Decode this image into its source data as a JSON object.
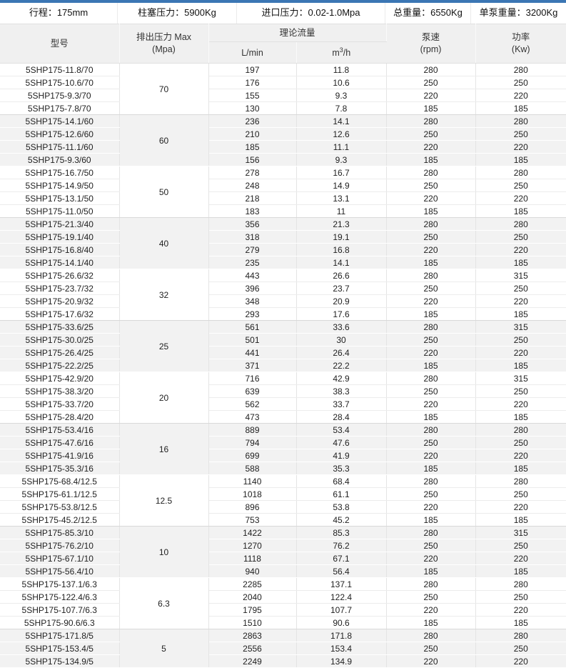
{
  "info_bar": {
    "items": [
      {
        "label": "行程：",
        "value": "175mm"
      },
      {
        "label": "柱塞压力：",
        "value": "5900Kg"
      },
      {
        "label": "进口压力：",
        "value": "0.02-1.0Mpa"
      },
      {
        "label": "总重量：",
        "value": "6550Kg"
      },
      {
        "label": "单泵重量：",
        "value": "3200Kg"
      }
    ]
  },
  "table": {
    "headers": {
      "model": "型号",
      "pressure_l1": "排出压力 Max",
      "pressure_l2": "(Mpa)",
      "flow": "理论流量",
      "flow_unit1": "L/min",
      "flow_unit2_base": "m",
      "flow_unit2_sup": "3",
      "flow_unit2_rest": "/h",
      "speed_l1": "泵速",
      "speed_l2": "(rpm)",
      "power_l1": "功率",
      "power_l2": "(Kw)"
    },
    "groups": [
      {
        "pressure": "70",
        "rows": [
          {
            "model": "5SHP175-11.8/70",
            "lmin": "197",
            "m3h": "11.8",
            "rpm": "280",
            "kw": "280"
          },
          {
            "model": "5SHP175-10.6/70",
            "lmin": "176",
            "m3h": "10.6",
            "rpm": "250",
            "kw": "250"
          },
          {
            "model": "5SHP175-9.3/70",
            "lmin": "155",
            "m3h": "9.3",
            "rpm": "220",
            "kw": "220"
          },
          {
            "model": "5SHP175-7.8/70",
            "lmin": "130",
            "m3h": "7.8",
            "rpm": "185",
            "kw": "185"
          }
        ]
      },
      {
        "pressure": "60",
        "rows": [
          {
            "model": "5SHP175-14.1/60",
            "lmin": "236",
            "m3h": "14.1",
            "rpm": "280",
            "kw": "280"
          },
          {
            "model": "5SHP175-12.6/60",
            "lmin": "210",
            "m3h": "12.6",
            "rpm": "250",
            "kw": "250"
          },
          {
            "model": "5SHP175-11.1/60",
            "lmin": "185",
            "m3h": "11.1",
            "rpm": "220",
            "kw": "220"
          },
          {
            "model": "5SHP175-9.3/60",
            "lmin": "156",
            "m3h": "9.3",
            "rpm": "185",
            "kw": "185"
          }
        ]
      },
      {
        "pressure": "50",
        "rows": [
          {
            "model": "5SHP175-16.7/50",
            "lmin": "278",
            "m3h": "16.7",
            "rpm": "280",
            "kw": "280"
          },
          {
            "model": "5SHP175-14.9/50",
            "lmin": "248",
            "m3h": "14.9",
            "rpm": "250",
            "kw": "250"
          },
          {
            "model": "5SHP175-13.1/50",
            "lmin": "218",
            "m3h": "13.1",
            "rpm": "220",
            "kw": "220"
          },
          {
            "model": "5SHP175-11.0/50",
            "lmin": "183",
            "m3h": "11",
            "rpm": "185",
            "kw": "185"
          }
        ]
      },
      {
        "pressure": "40",
        "rows": [
          {
            "model": "5SHP175-21.3/40",
            "lmin": "356",
            "m3h": "21.3",
            "rpm": "280",
            "kw": "280"
          },
          {
            "model": "5SHP175-19.1/40",
            "lmin": "318",
            "m3h": "19.1",
            "rpm": "250",
            "kw": "250"
          },
          {
            "model": "5SHP175-16.8/40",
            "lmin": "279",
            "m3h": "16.8",
            "rpm": "220",
            "kw": "220"
          },
          {
            "model": "5SHP175-14.1/40",
            "lmin": "235",
            "m3h": "14.1",
            "rpm": "185",
            "kw": "185"
          }
        ]
      },
      {
        "pressure": "32",
        "rows": [
          {
            "model": "5SHP175-26.6/32",
            "lmin": "443",
            "m3h": "26.6",
            "rpm": "280",
            "kw": "315"
          },
          {
            "model": "5SHP175-23.7/32",
            "lmin": "396",
            "m3h": "23.7",
            "rpm": "250",
            "kw": "250"
          },
          {
            "model": "5SHP175-20.9/32",
            "lmin": "348",
            "m3h": "20.9",
            "rpm": "220",
            "kw": "220"
          },
          {
            "model": "5SHP175-17.6/32",
            "lmin": "293",
            "m3h": "17.6",
            "rpm": "185",
            "kw": "185"
          }
        ]
      },
      {
        "pressure": "25",
        "rows": [
          {
            "model": "5SHP175-33.6/25",
            "lmin": "561",
            "m3h": "33.6",
            "rpm": "280",
            "kw": "315"
          },
          {
            "model": "5SHP175-30.0/25",
            "lmin": "501",
            "m3h": "30",
            "rpm": "250",
            "kw": "250"
          },
          {
            "model": "5SHP175-26.4/25",
            "lmin": "441",
            "m3h": "26.4",
            "rpm": "220",
            "kw": "220"
          },
          {
            "model": "5SHP175-22.2/25",
            "lmin": "371",
            "m3h": "22.2",
            "rpm": "185",
            "kw": "185"
          }
        ]
      },
      {
        "pressure": "20",
        "rows": [
          {
            "model": "5SHP175-42.9/20",
            "lmin": "716",
            "m3h": "42.9",
            "rpm": "280",
            "kw": "315"
          },
          {
            "model": "5SHP175-38.3/20",
            "lmin": "639",
            "m3h": "38.3",
            "rpm": "250",
            "kw": "250"
          },
          {
            "model": "5SHP175-33.7/20",
            "lmin": "562",
            "m3h": "33.7",
            "rpm": "220",
            "kw": "220"
          },
          {
            "model": "5SHP175-28.4/20",
            "lmin": "473",
            "m3h": "28.4",
            "rpm": "185",
            "kw": "185"
          }
        ]
      },
      {
        "pressure": "16",
        "rows": [
          {
            "model": "5SHP175-53.4/16",
            "lmin": "889",
            "m3h": "53.4",
            "rpm": "280",
            "kw": "280"
          },
          {
            "model": "5SHP175-47.6/16",
            "lmin": "794",
            "m3h": "47.6",
            "rpm": "250",
            "kw": "250"
          },
          {
            "model": "5SHP175-41.9/16",
            "lmin": "699",
            "m3h": "41.9",
            "rpm": "220",
            "kw": "220"
          },
          {
            "model": "5SHP175-35.3/16",
            "lmin": "588",
            "m3h": "35.3",
            "rpm": "185",
            "kw": "185"
          }
        ]
      },
      {
        "pressure": "12.5",
        "rows": [
          {
            "model": "5SHP175-68.4/12.5",
            "lmin": "1140",
            "m3h": "68.4",
            "rpm": "280",
            "kw": "280"
          },
          {
            "model": "5SHP175-61.1/12.5",
            "lmin": "1018",
            "m3h": "61.1",
            "rpm": "250",
            "kw": "250"
          },
          {
            "model": "5SHP175-53.8/12.5",
            "lmin": "896",
            "m3h": "53.8",
            "rpm": "220",
            "kw": "220"
          },
          {
            "model": "5SHP175-45.2/12.5",
            "lmin": "753",
            "m3h": "45.2",
            "rpm": "185",
            "kw": "185"
          }
        ]
      },
      {
        "pressure": "10",
        "rows": [
          {
            "model": "5SHP175-85.3/10",
            "lmin": "1422",
            "m3h": "85.3",
            "rpm": "280",
            "kw": "315"
          },
          {
            "model": "5SHP175-76.2/10",
            "lmin": "1270",
            "m3h": "76.2",
            "rpm": "250",
            "kw": "250"
          },
          {
            "model": "5SHP175-67.1/10",
            "lmin": "1118",
            "m3h": "67.1",
            "rpm": "220",
            "kw": "220"
          },
          {
            "model": "5SHP175-56.4/10",
            "lmin": "940",
            "m3h": "56.4",
            "rpm": "185",
            "kw": "185"
          }
        ]
      },
      {
        "pressure": "6.3",
        "rows": [
          {
            "model": "5SHP175-137.1/6.3",
            "lmin": "2285",
            "m3h": "137.1",
            "rpm": "280",
            "kw": "280"
          },
          {
            "model": "5SHP175-122.4/6.3",
            "lmin": "2040",
            "m3h": "122.4",
            "rpm": "250",
            "kw": "250"
          },
          {
            "model": "5SHP175-107.7/6.3",
            "lmin": "1795",
            "m3h": "107.7",
            "rpm": "220",
            "kw": "220"
          },
          {
            "model": "5SHP175-90.6/6.3",
            "lmin": "1510",
            "m3h": "90.6",
            "rpm": "185",
            "kw": "185"
          }
        ]
      },
      {
        "pressure": "5",
        "rows": [
          {
            "model": "5SHP175-171.8/5",
            "lmin": "2863",
            "m3h": "171.8",
            "rpm": "280",
            "kw": "280"
          },
          {
            "model": "5SHP175-153.4/5",
            "lmin": "2556",
            "m3h": "153.4",
            "rpm": "250",
            "kw": "250"
          },
          {
            "model": "5SHP175-134.9/5",
            "lmin": "2249",
            "m3h": "134.9",
            "rpm": "220",
            "kw": "220"
          }
        ]
      }
    ]
  },
  "colors": {
    "top_border": "#3b76b4",
    "header_bg": "#f0f0f0",
    "stripe_bg": "#f2f2f2",
    "grid_line": "#e4e4e4"
  }
}
